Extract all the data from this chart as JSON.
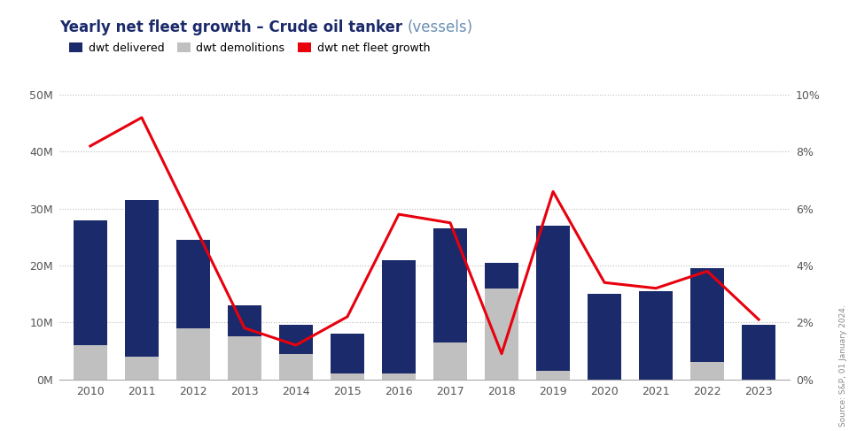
{
  "title_main": "Yearly net fleet growth – Crude oil tanker ",
  "title_sub": "(vessels)",
  "years": [
    2010,
    2011,
    2012,
    2013,
    2014,
    2015,
    2016,
    2017,
    2018,
    2019,
    2020,
    2021,
    2022,
    2023
  ],
  "dwt_delivered": [
    28000000,
    31500000,
    24500000,
    13000000,
    9500000,
    8000000,
    21000000,
    26500000,
    20500000,
    27000000,
    15000000,
    15500000,
    19500000,
    9500000
  ],
  "dwt_demolitions": [
    6000000,
    4000000,
    9000000,
    7500000,
    4500000,
    1000000,
    1000000,
    6500000,
    16000000,
    1500000,
    0,
    0,
    3000000,
    0
  ],
  "dwt_net_growth_pct": [
    0.082,
    0.092,
    0.055,
    0.018,
    0.012,
    0.022,
    0.058,
    0.055,
    0.009,
    0.066,
    0.034,
    0.032,
    0.038,
    0.021
  ],
  "bar_color_delivered": "#1B2A6B",
  "bar_color_demolitions": "#C0C0C0",
  "line_color": "#E8000D",
  "background_color": "#FFFFFF",
  "grid_color": "#BBBBBB",
  "title_main_color": "#1B2A6B",
  "title_sub_color": "#6B8FB5",
  "ylim_left": [
    0,
    50000000
  ],
  "ylim_right": [
    0,
    0.1
  ],
  "yticks_left": [
    0,
    10000000,
    20000000,
    30000000,
    40000000,
    50000000
  ],
  "ytick_labels_left": [
    "0M",
    "10M",
    "20M",
    "30M",
    "40M",
    "50M"
  ],
  "yticks_right": [
    0,
    0.02,
    0.04,
    0.06,
    0.08,
    0.1
  ],
  "ytick_labels_right": [
    "0%",
    "2%",
    "4%",
    "6%",
    "8%",
    "10%"
  ],
  "legend_labels": [
    "dwt delivered",
    "dwt demolitions",
    "dwt net fleet growth"
  ],
  "source_text": "Source: S&P, 01 January 2024."
}
